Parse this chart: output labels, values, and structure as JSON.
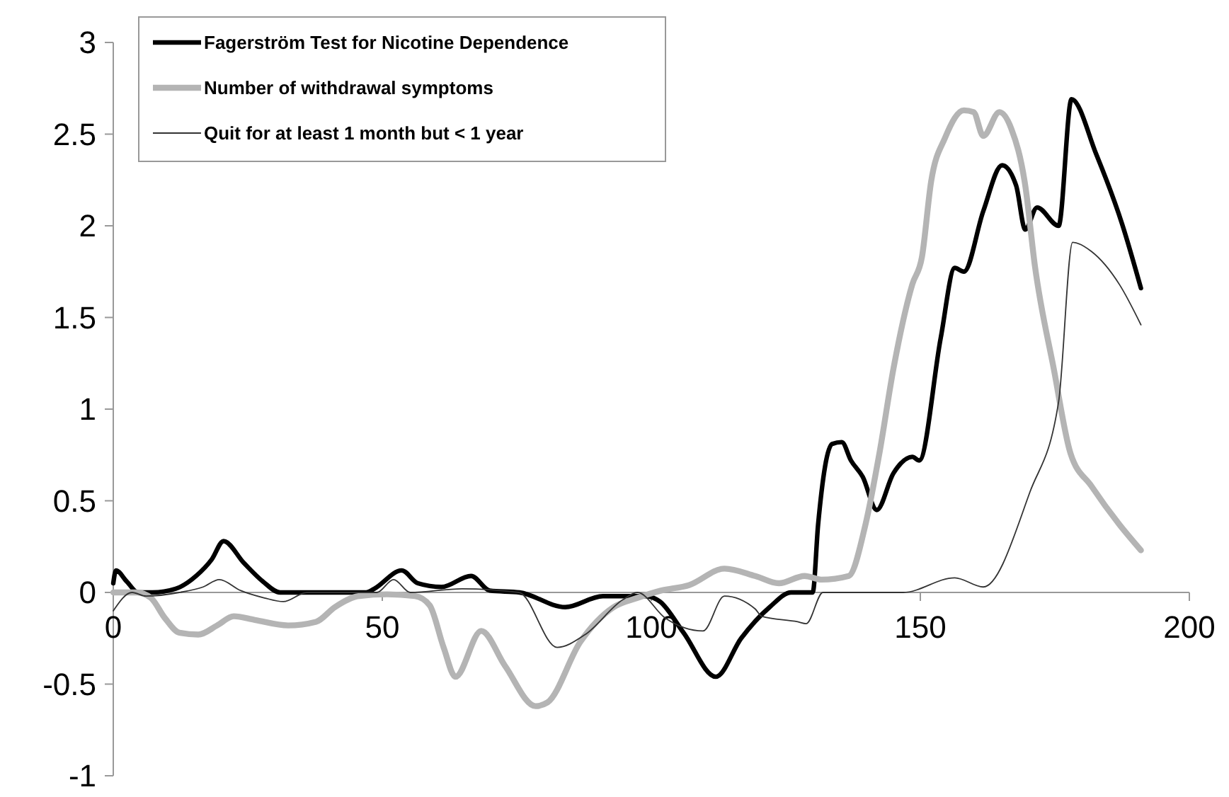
{
  "chart_data": {
    "type": "line",
    "xlim": [
      0,
      200
    ],
    "xticks": [
      0,
      50,
      100,
      150,
      200
    ],
    "ylim": [
      -1,
      3
    ],
    "yticks": [
      -1,
      -0.5,
      0,
      0.5,
      1,
      1.5,
      2,
      2.5,
      3
    ],
    "grid": false,
    "legend": "top left",
    "marker": "none",
    "line_style": "solid",
    "series": [
      {
        "name": "Fagerström Test for Nicotine Dependence",
        "color": "#000000",
        "x": [
          0,
          0.5,
          2.5,
          4.6,
          7.3,
          11.6,
          15.4,
          18.3,
          20.5,
          24.3,
          27.8,
          31,
          47,
          48.5,
          53.6,
          56.6,
          61,
          66.5,
          70,
          75.5,
          84,
          91,
          99,
          101.6,
          106,
          112,
          116.7,
          122,
          126,
          130,
          131,
          133.6,
          135.4,
          137.1,
          139.3,
          141.9,
          145,
          148.5,
          149.8,
          153.8,
          156.4,
          158.1,
          161.7,
          165.2,
          167.8,
          169.5,
          171.7,
          175.7,
          178.1,
          182.7,
          187.5,
          191
        ],
        "values": [
          0.05,
          0.12,
          0.06,
          0,
          0,
          0.02,
          0.09,
          0.18,
          0.28,
          0.16,
          0.06,
          0,
          0,
          0.02,
          0.12,
          0.05,
          0.03,
          0.09,
          0.01,
          0,
          -0.08,
          -0.02,
          -0.02,
          -0.05,
          -0.22,
          -0.46,
          -0.25,
          -0.08,
          0,
          0,
          0.37,
          0.81,
          0.82,
          0.72,
          0.63,
          0.45,
          0.65,
          0.74,
          0.72,
          1.39,
          1.77,
          1.75,
          2.08,
          2.33,
          2.22,
          1.98,
          2.1,
          2,
          2.69,
          2.39,
          2.01,
          1.66
        ]
      },
      {
        "name": "Number of withdrawal symptoms",
        "color": "#b4b4b4",
        "x": [
          0,
          4.4,
          7,
          9.6,
          12.3,
          15.8,
          19.3,
          22.4,
          26.3,
          32.5,
          37.7,
          41.2,
          45.6,
          50.9,
          56.1,
          58.8,
          61.4,
          63.6,
          68.4,
          72.8,
          78.5,
          80.7,
          86.8,
          93,
          97.4,
          101.8,
          107,
          113.6,
          119.3,
          123.7,
          128.5,
          131.6,
          136.7,
          139.8,
          142.4,
          145,
          148.5,
          150.3,
          152,
          154.6,
          158.1,
          159.9,
          161.7,
          164.7,
          166.9,
          169.5,
          171.3,
          174.8,
          177.9,
          181.8,
          187,
          191
        ],
        "values": [
          0,
          0,
          -0.03,
          -0.14,
          -0.22,
          -0.23,
          -0.18,
          -0.13,
          -0.15,
          -0.18,
          -0.16,
          -0.08,
          -0.02,
          -0.01,
          -0.02,
          -0.07,
          -0.3,
          -0.46,
          -0.21,
          -0.4,
          -0.62,
          -0.6,
          -0.27,
          -0.08,
          -0.03,
          0.01,
          0.04,
          0.13,
          0.09,
          0.05,
          0.09,
          0.07,
          0.09,
          0.37,
          0.76,
          1.22,
          1.68,
          1.83,
          2.24,
          2.48,
          2.63,
          2.62,
          2.49,
          2.62,
          2.53,
          2.22,
          1.78,
          1.22,
          0.76,
          0.58,
          0.37,
          0.23
        ]
      },
      {
        "name": "Quit for at least 1 month but < 1 year",
        "color": "#333333",
        "x": [
          0,
          3.5,
          6.1,
          12.3,
          16.7,
          19.7,
          23.7,
          28.1,
          31.6,
          36,
          49,
          52.1,
          55.2,
          64.8,
          75.4,
          82.5,
          87.7,
          94.7,
          97.4,
          102.6,
          109.6,
          113.6,
          119.3,
          120.5,
          127.2,
          128.8,
          131.9,
          146.8,
          156.4,
          161.7,
          170.4,
          175.7,
          178.3,
          181.8,
          187,
          191
        ],
        "values": [
          -0.1,
          0,
          -0.02,
          0,
          0.03,
          0.07,
          0.01,
          -0.03,
          -0.05,
          0,
          0,
          0.07,
          0,
          0.02,
          0,
          -0.3,
          -0.23,
          -0.04,
          0,
          -0.14,
          -0.21,
          -0.02,
          -0.09,
          -0.13,
          -0.16,
          -0.17,
          0,
          0,
          0.08,
          0.03,
          0.55,
          1.04,
          1.91,
          1.86,
          1.68,
          1.46
        ]
      }
    ]
  }
}
